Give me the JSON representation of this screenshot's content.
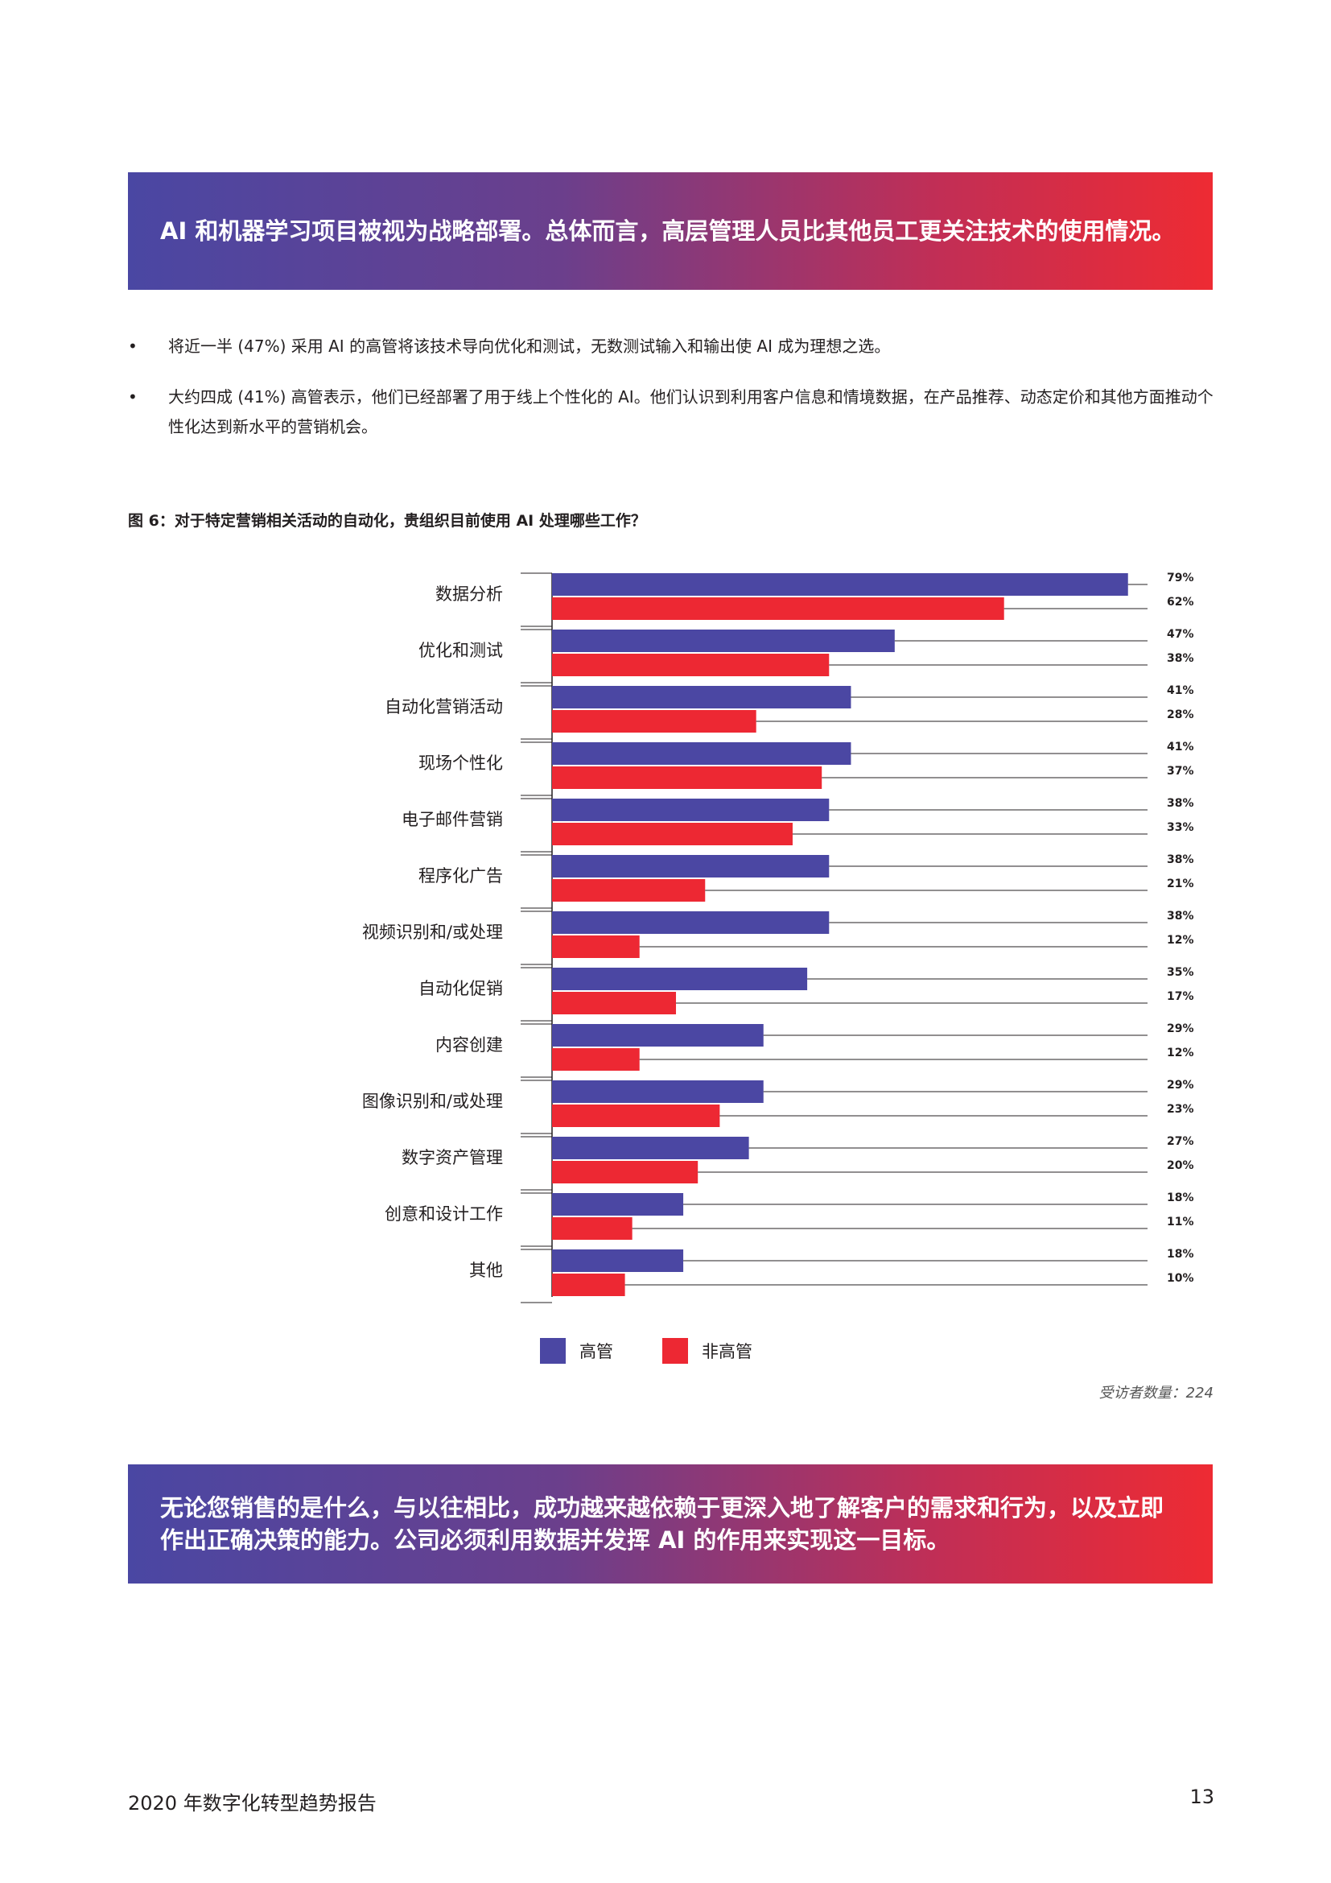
{
  "banner_top": "AI 和机器学习项目被视为战略部署。总体而言，高层管理人员比其他员工更关注技术的使用情况。",
  "bullets": [
    "将近一半 (47%) 采用 AI 的高管将该技术导向优化和测试，无数测试输入和输出使 AI 成为理想之选。",
    "大约四成 (41%) 高管表示，他们已经部署了用于线上个性化的 AI。他们认识到利用客户信息和情境数据，在产品推荐、动态定价和其他方面推动个性化达到新水平的营销机会。"
  ],
  "figure_caption": "图 6：对于特定营销相关活动的自动化，贵组织目前使用 AI 处理哪些工作？",
  "chart_data": {
    "type": "bar",
    "orientation": "horizontal",
    "categories": [
      "数据分析",
      "优化和测试",
      "自动化营销活动",
      "现场个性化",
      "电子邮件营销",
      "程序化广告",
      "视频识别和/或处理",
      "自动化促销",
      "内容创建",
      "图像识别和/或处理",
      "数字资产管理",
      "创意和设计工作",
      "其他"
    ],
    "series": [
      {
        "name": "高管",
        "color": "#4b47a3",
        "values": [
          79,
          47,
          41,
          41,
          38,
          38,
          38,
          35,
          29,
          29,
          27,
          18,
          18
        ]
      },
      {
        "name": "非高管",
        "color": "#ed2833",
        "values": [
          62,
          38,
          28,
          37,
          33,
          21,
          12,
          17,
          12,
          23,
          20,
          11,
          10
        ]
      }
    ],
    "value_suffix": "%",
    "xlim": [
      0,
      100
    ],
    "legend_position": "bottom"
  },
  "respondents": "受访者数量：224",
  "banner_bottom": "无论您销售的是什么，与以往相比，成功越来越依赖于更深入地了解客户的需求和行为，以及立即作出正确决策的能力。公司必须利用数据并发挥 AI 的作用来实现这一目标。",
  "footer": {
    "title": "2020 年数字化转型趋势报告",
    "page": "13"
  }
}
